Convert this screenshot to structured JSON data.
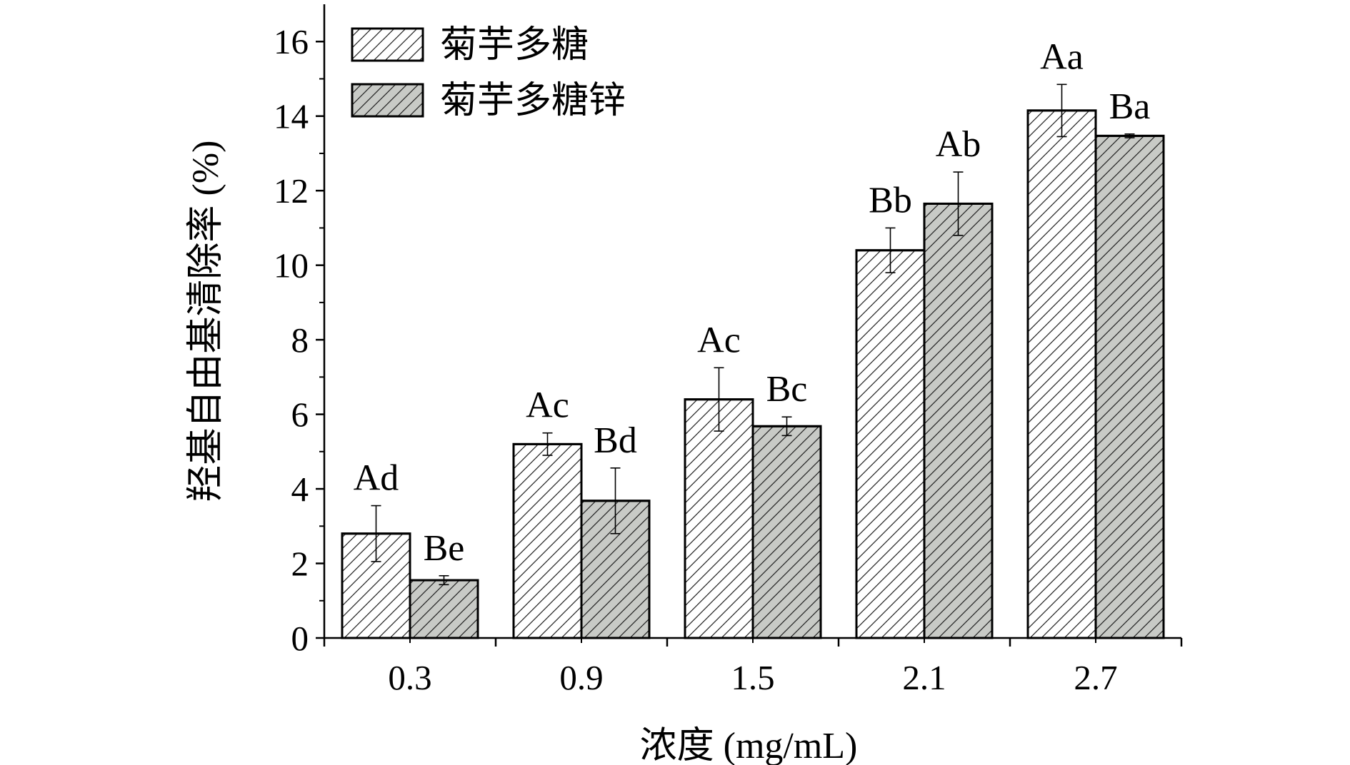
{
  "chart_data": {
    "type": "bar",
    "title": "",
    "xlabel": "浓度 (mg/mL)",
    "ylabel": "羟基自由基清除率 (%)",
    "categories": [
      "0.3",
      "0.9",
      "1.5",
      "2.1",
      "2.7"
    ],
    "ylim": [
      0,
      17
    ],
    "yticks": [
      "0",
      "2",
      "4",
      "6",
      "8",
      "10",
      "12",
      "14",
      "16"
    ],
    "grid": false,
    "legend_placement": "top-left",
    "series": [
      {
        "name": "菊芋多糖",
        "color": "#ffffff",
        "hatch": "diagonal",
        "values": [
          2.8,
          5.2,
          6.4,
          10.4,
          14.15
        ],
        "errors": [
          0.75,
          0.3,
          0.85,
          0.6,
          0.7
        ],
        "labels": [
          "Ad",
          "Ac",
          "Ac",
          "Bb",
          "Aa"
        ]
      },
      {
        "name": "菊芋多糖锌",
        "color": "#c8cac6",
        "hatch": "diagonal",
        "values": [
          1.55,
          3.68,
          5.68,
          11.65,
          13.47
        ],
        "errors": [
          0.12,
          0.88,
          0.25,
          0.85,
          0.05
        ],
        "labels": [
          "Be",
          "Bd",
          "Bc",
          "Ab",
          "Ba"
        ]
      }
    ]
  }
}
